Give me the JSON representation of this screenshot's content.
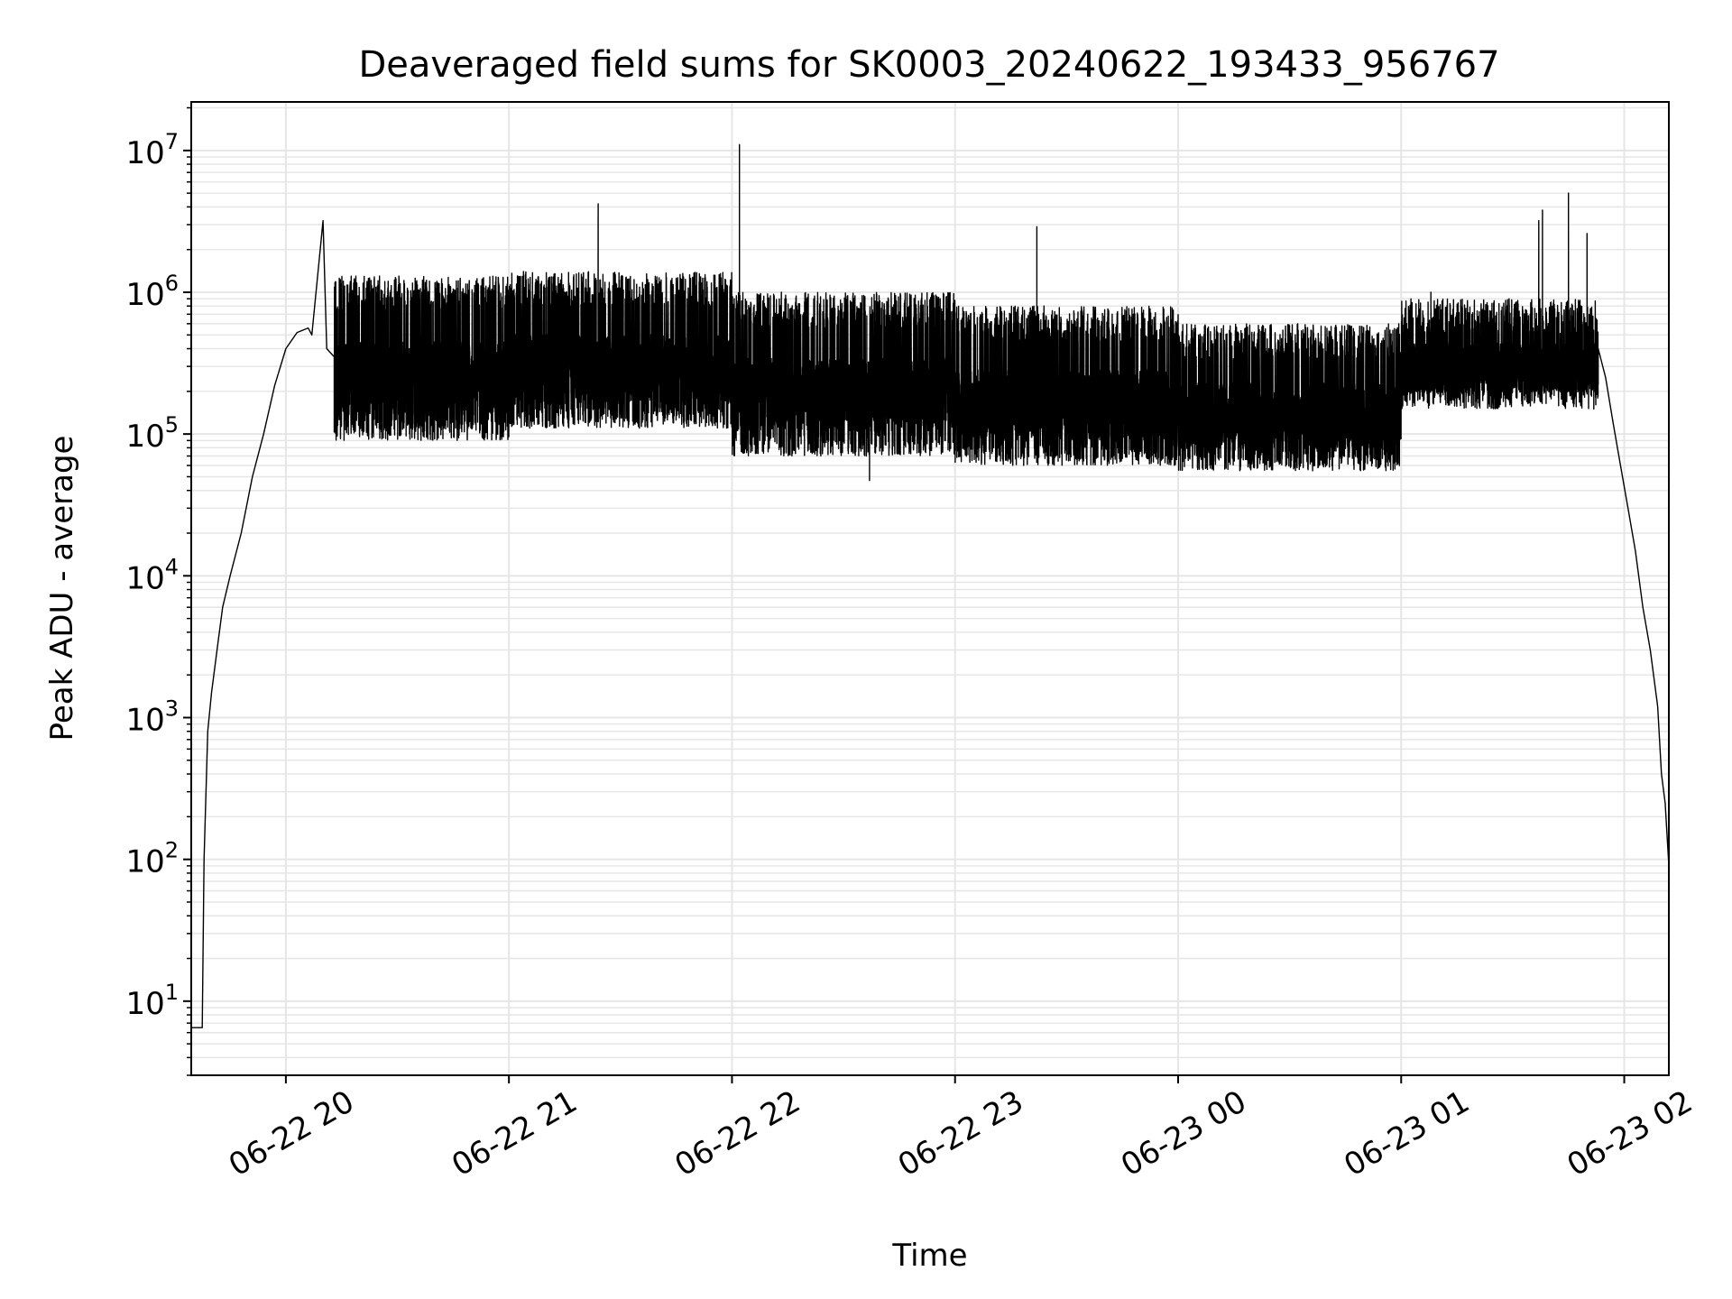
{
  "chart_data": {
    "type": "line",
    "title": "Deaveraged field sums for SK0003_20240622_193433_956767",
    "xlabel": "Time",
    "ylabel": "Peak ADU - average",
    "x_range": [
      "2024-06-22 19:34:33",
      "2024-06-23 02:12:00"
    ],
    "y_scale": "log",
    "ylim": [
      3,
      22000000
    ],
    "grid": true,
    "colors": {
      "line": "#000000",
      "grid": "#e6e6e6"
    },
    "x_ticks": [
      {
        "label": "06-22 20",
        "time": "2024-06-22 20:00"
      },
      {
        "label": "06-22 21",
        "time": "2024-06-22 21:00"
      },
      {
        "label": "06-22 22",
        "time": "2024-06-22 22:00"
      },
      {
        "label": "06-22 23",
        "time": "2024-06-22 23:00"
      },
      {
        "label": "06-23 00",
        "time": "2024-06-23 00:00"
      },
      {
        "label": "06-23 01",
        "time": "2024-06-23 01:00"
      },
      {
        "label": "06-23 02",
        "time": "2024-06-23 02:00"
      }
    ],
    "y_ticks": [
      {
        "base": "10",
        "exp": "1",
        "value": 10
      },
      {
        "base": "10",
        "exp": "2",
        "value": 100
      },
      {
        "base": "10",
        "exp": "3",
        "value": 1000
      },
      {
        "base": "10",
        "exp": "4",
        "value": 10000
      },
      {
        "base": "10",
        "exp": "5",
        "value": 100000
      },
      {
        "base": "10",
        "exp": "6",
        "value": 1000000
      },
      {
        "base": "10",
        "exp": "7",
        "value": 10000000
      }
    ],
    "series": [
      {
        "color": "#000000",
        "points": [
          [
            "2024-06-22 19:34:33",
            6.5
          ],
          [
            "2024-06-22 19:36:00",
            6.5
          ],
          [
            "2024-06-22 19:37:30",
            6.5
          ],
          [
            "2024-06-22 19:38:00",
            100
          ],
          [
            "2024-06-22 19:39:00",
            800
          ],
          [
            "2024-06-22 19:40:00",
            1500
          ],
          [
            "2024-06-22 19:41:30",
            3000
          ],
          [
            "2024-06-22 19:43:00",
            6000
          ],
          [
            "2024-06-22 19:45:00",
            10000
          ],
          [
            "2024-06-22 19:48:00",
            20000
          ],
          [
            "2024-06-22 19:51:00",
            50000
          ],
          [
            "2024-06-22 19:54:00",
            100000
          ],
          [
            "2024-06-22 19:57:00",
            220000
          ],
          [
            "2024-06-22 20:00:00",
            400000
          ],
          [
            "2024-06-22 20:03:00",
            520000
          ],
          [
            "2024-06-22 20:06:00",
            560000
          ],
          [
            "2024-06-22 20:07:00",
            500000
          ],
          [
            "2024-06-22 20:10:00",
            3200000
          ],
          [
            "2024-06-22 20:11:00",
            400000
          ],
          [
            "2024-06-22 20:13:00",
            350000
          ]
        ],
        "segments": [
          {
            "start": "2024-06-22 20:13:00",
            "end": "2024-06-22 21:00:00",
            "low": 90000,
            "high": 1300000
          },
          {
            "start": "2024-06-22 21:00:00",
            "end": "2024-06-22 22:00:00",
            "low": 110000,
            "high": 1400000
          },
          {
            "start": "2024-06-22 22:00:00",
            "end": "2024-06-22 23:00:00",
            "low": 70000,
            "high": 1000000
          },
          {
            "start": "2024-06-22 23:00:00",
            "end": "2024-06-23 00:00:00",
            "low": 60000,
            "high": 800000
          },
          {
            "start": "2024-06-23 00:00:00",
            "end": "2024-06-23 01:00:00",
            "low": 55000,
            "high": 600000
          },
          {
            "start": "2024-06-23 01:00:00",
            "end": "2024-06-23 01:53:00",
            "low": 150000,
            "high": 900000
          }
        ],
        "spikes": [
          [
            "2024-06-22 21:24:00",
            4200000
          ],
          [
            "2024-06-22 22:02:00",
            11000000
          ],
          [
            "2024-06-22 22:37:00",
            47000
          ],
          [
            "2024-06-22 23:22:00",
            2900000
          ],
          [
            "2024-06-23 01:08:00",
            1000000
          ],
          [
            "2024-06-23 01:37:00",
            3200000
          ],
          [
            "2024-06-23 01:38:00",
            3800000
          ],
          [
            "2024-06-23 01:45:00",
            5000000
          ],
          [
            "2024-06-23 01:50:00",
            2600000
          ]
        ],
        "tail": [
          [
            "2024-06-23 01:53:00",
            400000
          ],
          [
            "2024-06-23 01:55:00",
            250000
          ],
          [
            "2024-06-23 01:57:00",
            120000
          ],
          [
            "2024-06-23 01:59:00",
            60000
          ],
          [
            "2024-06-23 02:01:00",
            30000
          ],
          [
            "2024-06-23 02:03:00",
            15000
          ],
          [
            "2024-06-23 02:05:00",
            6000
          ],
          [
            "2024-06-23 02:07:00",
            3000
          ],
          [
            "2024-06-23 02:09:00",
            1200
          ],
          [
            "2024-06-23 02:10:00",
            400
          ],
          [
            "2024-06-23 02:11:00",
            250
          ],
          [
            "2024-06-23 02:12:00",
            90
          ]
        ]
      }
    ]
  }
}
